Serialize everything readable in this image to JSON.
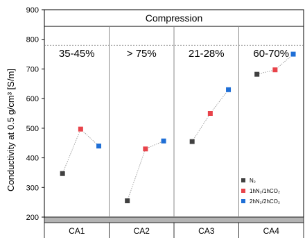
{
  "chart_data": {
    "type": "scatter",
    "title": "Compression",
    "ylabel": "Conductivity at 0.5 g/cm³ [S/m]",
    "ylim": [
      200,
      900
    ],
    "yticks": [
      200,
      300,
      400,
      500,
      600,
      700,
      800,
      900
    ],
    "reference_line": 780,
    "categories": [
      "CA1",
      "CA2",
      "CA3",
      "CA4"
    ],
    "panel_labels": [
      "35-45%",
      "> 75%",
      "21-28%",
      "60-70%"
    ],
    "series": [
      {
        "name": "N₂",
        "color": "#404040",
        "values": [
          347,
          255,
          455,
          682
        ]
      },
      {
        "name": "1hN₂/1hCO₂",
        "color": "#e8434a",
        "values": [
          497,
          430,
          550,
          697
        ]
      },
      {
        "name": "2hN₂/2hCO₂",
        "color": "#1f6fd6",
        "values": [
          440,
          457,
          630,
          750
        ]
      }
    ],
    "legend_position": "bottom-right",
    "grid": false
  }
}
